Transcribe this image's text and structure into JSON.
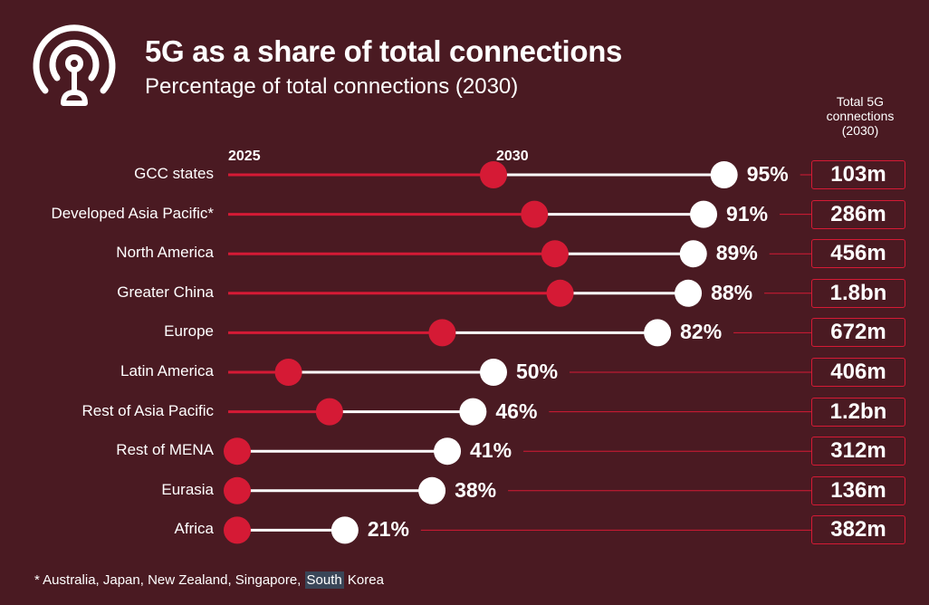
{
  "title": "5G as a share of total connections",
  "subtitle": "Percentage of total connections (2030)",
  "total_header": "Total 5G connections (2030)",
  "footnote": {
    "before": "* Australia, Japan, New Zealand, Singapore, ",
    "highlight": "South",
    "after": " Korea"
  },
  "colors": {
    "background": "#4a1a22",
    "accent": "#d51a35",
    "marker_2030": "#ffffff"
  },
  "icon": "signal-tower-icon",
  "chart_data": {
    "type": "dumbbell",
    "title": "5G as a share of total connections",
    "subtitle": "Percentage of total connections (2030)",
    "series_labels": [
      "2025",
      "2030"
    ],
    "unit": "%",
    "xlim": [
      0,
      100
    ],
    "categories": [
      "GCC states",
      "Developed Asia Pacific*",
      "North America",
      "Greater China",
      "Europe",
      "Latin America",
      "Rest of Asia Pacific",
      "Rest of MENA",
      "Eurasia",
      "Africa"
    ],
    "values_2025": [
      50,
      58,
      62,
      63,
      40,
      10,
      18,
      0,
      0,
      0
    ],
    "values_2030": [
      95,
      91,
      89,
      88,
      82,
      50,
      46,
      41,
      38,
      21
    ],
    "pct_labels": [
      "95%",
      "91%",
      "89%",
      "88%",
      "82%",
      "50%",
      "46%",
      "41%",
      "38%",
      "21%"
    ],
    "totals": [
      "103m",
      "286m",
      "456m",
      "1.8bn",
      "672m",
      "406m",
      "1.2bn",
      "312m",
      "136m",
      "382m"
    ]
  }
}
